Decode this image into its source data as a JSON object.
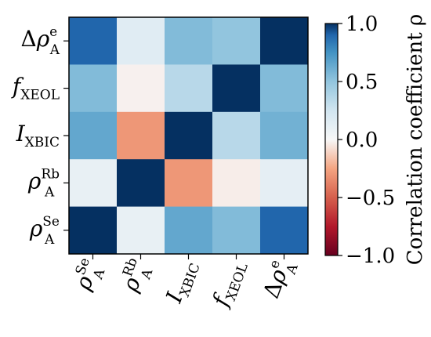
{
  "chart_data": {
    "type": "heatmap",
    "row_labels": [
      {
        "base": "Δρ",
        "sup": "e",
        "sub": "A"
      },
      {
        "base": "f",
        "sup": "",
        "sub": "XEOL"
      },
      {
        "base": "I",
        "sup": "",
        "sub": "XBIC"
      },
      {
        "base": "ρ",
        "sup": "Rb",
        "sub": "A"
      },
      {
        "base": "ρ",
        "sup": "Se",
        "sub": "A"
      }
    ],
    "col_labels": [
      {
        "base": "ρ",
        "sup": "Se",
        "sub": "A"
      },
      {
        "base": "ρ",
        "sup": "Rb",
        "sub": "A"
      },
      {
        "base": "I",
        "sup": "",
        "sub": "XBIC"
      },
      {
        "base": "f",
        "sup": "",
        "sub": "XEOL"
      },
      {
        "base": "Δρ",
        "sup": "e",
        "sub": "A"
      }
    ],
    "values": [
      [
        0.9,
        0.15,
        0.55,
        0.5,
        1.0
      ],
      [
        0.55,
        -0.02,
        0.35,
        1.0,
        0.55
      ],
      [
        0.65,
        -0.3,
        1.0,
        0.35,
        0.6
      ],
      [
        0.1,
        1.0,
        -0.3,
        -0.03,
        0.12
      ],
      [
        1.0,
        0.1,
        0.65,
        0.55,
        0.9
      ]
    ],
    "colorbar": {
      "label": "Correlation coefficient ρ",
      "ticks": [
        "1.0",
        "0.5",
        "0.0",
        "−0.5",
        "−1.0"
      ],
      "tick_values": [
        1.0,
        0.5,
        0.0,
        -0.5,
        -1.0
      ],
      "range": [
        -1.0,
        1.0
      ],
      "colormap": "RdBu"
    }
  }
}
